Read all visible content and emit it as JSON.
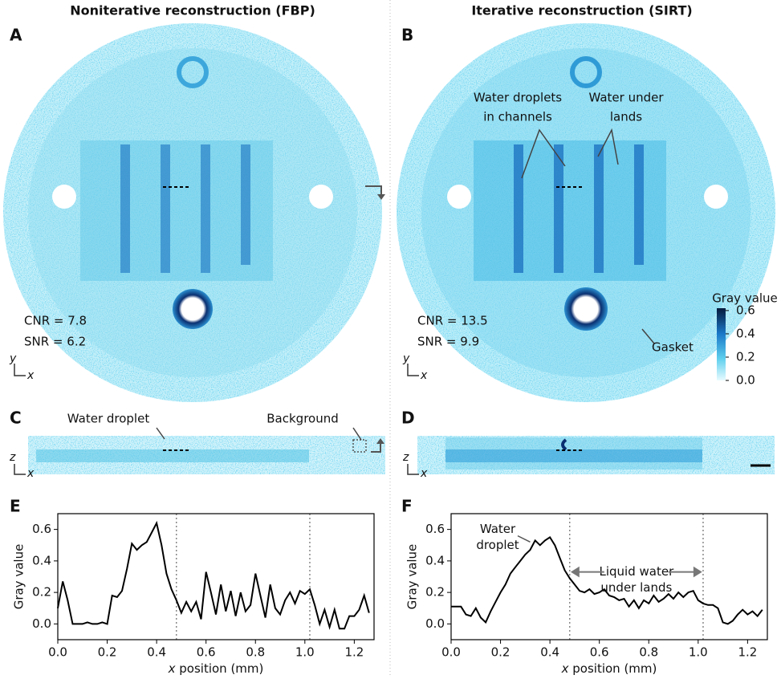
{
  "panels": [
    {
      "letter": "A",
      "title": "Noniterative reconstruction (FBP)",
      "cnr": "CNR = 7.8",
      "snr": "SNR = 6.2"
    },
    {
      "letter": "B",
      "title": "Iterative reconstruction (SIRT)",
      "cnr": "CNR = 13.5",
      "snr": "SNR = 9.9"
    },
    {
      "letter": "C"
    },
    {
      "letter": "D"
    },
    {
      "letter": "E"
    },
    {
      "letter": "F"
    }
  ],
  "axis_letters": {
    "x": "x",
    "y": "y",
    "z": "z"
  },
  "annotations": {
    "droplets_in_channels": [
      "Water droplets",
      "in channels"
    ],
    "under_lands": [
      "Water under",
      "lands"
    ],
    "gasket": "Gasket",
    "water_droplet": "Water droplet",
    "background": "Background"
  },
  "colorbar": {
    "label": "Gray value",
    "lim": [
      0,
      0.62
    ],
    "ticks": [
      0.6,
      0.4,
      0.2,
      {
        "value": 0,
        "label": "0.0"
      }
    ]
  },
  "chart_data": [
    {
      "type": "line",
      "ylabel": "Gray value",
      "xlabel_var": "x",
      "xlabel": "position (mm)",
      "color": "#000000",
      "xlim": [
        0,
        1.28
      ],
      "ylim": [
        -0.1,
        0.7
      ],
      "xticks": [
        {
          "value": 0,
          "label": "0.0"
        },
        0.2,
        0.4,
        0.6,
        0.8,
        {
          "value": 1,
          "label": "1.0"
        },
        1.2
      ],
      "yticks": [
        {
          "value": 0,
          "label": "0.0"
        },
        0.2,
        0.4,
        0.6
      ],
      "vlines": [
        0.48,
        1.02
      ],
      "x": [
        0,
        0.02,
        0.04,
        0.06,
        0.08,
        0.1,
        0.12,
        0.14,
        0.16,
        0.18,
        0.2,
        0.22,
        0.24,
        0.26,
        0.28,
        0.3,
        0.32,
        0.34,
        0.36,
        0.38,
        0.4,
        0.42,
        0.44,
        0.46,
        0.48,
        0.5,
        0.52,
        0.54,
        0.56,
        0.58,
        0.6,
        0.62,
        0.64,
        0.66,
        0.68,
        0.7,
        0.72,
        0.74,
        0.76,
        0.78,
        0.8,
        0.82,
        0.84,
        0.86,
        0.88,
        0.9,
        0.92,
        0.94,
        0.96,
        0.98,
        1,
        1.02,
        1.04,
        1.06,
        1.08,
        1.1,
        1.12,
        1.14,
        1.16,
        1.18,
        1.2,
        1.22,
        1.24,
        1.26
      ],
      "values": [
        0.1,
        0.27,
        0.15,
        0,
        0,
        0,
        0.01,
        0,
        0,
        0.01,
        0,
        0.18,
        0.17,
        0.21,
        0.35,
        0.51,
        0.47,
        0.5,
        0.52,
        0.58,
        0.64,
        0.5,
        0.32,
        0.22,
        0.15,
        0.07,
        0.14,
        0.08,
        0.14,
        0.03,
        0.33,
        0.2,
        0.06,
        0.25,
        0.08,
        0.21,
        0.05,
        0.2,
        0.08,
        0.12,
        0.32,
        0.18,
        0.04,
        0.25,
        0.1,
        0.06,
        0.15,
        0.2,
        0.13,
        0.21,
        0.19,
        0.22,
        0.12,
        0,
        0.09,
        -0.02,
        0.09,
        -0.03,
        -0.03,
        0.05,
        0.05,
        0.09,
        0.18,
        0.07
      ]
    },
    {
      "type": "line",
      "ylabel": "Gray value",
      "xlabel_var": "x",
      "xlabel": "position (mm)",
      "color": "#000000",
      "xlim": [
        0,
        1.28
      ],
      "ylim": [
        -0.1,
        0.7
      ],
      "xticks": [
        {
          "value": 0,
          "label": "0.0"
        },
        0.2,
        0.4,
        0.6,
        0.8,
        {
          "value": 1,
          "label": "1.0"
        },
        1.2
      ],
      "yticks": [
        {
          "value": 0,
          "label": "0.0"
        },
        0.2,
        0.4,
        0.6
      ],
      "vlines": [
        0.48,
        1.02
      ],
      "annotations": [
        [
          "Water",
          "droplet"
        ],
        [
          "Liquid water",
          "under lands"
        ]
      ],
      "x": [
        0,
        0.02,
        0.04,
        0.06,
        0.08,
        0.1,
        0.12,
        0.14,
        0.16,
        0.18,
        0.2,
        0.22,
        0.24,
        0.26,
        0.28,
        0.3,
        0.32,
        0.34,
        0.36,
        0.38,
        0.4,
        0.42,
        0.44,
        0.46,
        0.48,
        0.5,
        0.52,
        0.54,
        0.56,
        0.58,
        0.6,
        0.62,
        0.64,
        0.66,
        0.68,
        0.7,
        0.72,
        0.74,
        0.76,
        0.78,
        0.8,
        0.82,
        0.84,
        0.86,
        0.88,
        0.9,
        0.92,
        0.94,
        0.96,
        0.98,
        1,
        1.02,
        1.04,
        1.06,
        1.08,
        1.1,
        1.12,
        1.14,
        1.16,
        1.18,
        1.2,
        1.22,
        1.24,
        1.26
      ],
      "values": [
        0.11,
        0.11,
        0.11,
        0.06,
        0.05,
        0.1,
        0.04,
        0.01,
        0.08,
        0.14,
        0.2,
        0.25,
        0.32,
        0.36,
        0.4,
        0.44,
        0.47,
        0.53,
        0.5,
        0.53,
        0.55,
        0.5,
        0.42,
        0.34,
        0.29,
        0.25,
        0.21,
        0.2,
        0.22,
        0.19,
        0.2,
        0.22,
        0.18,
        0.17,
        0.15,
        0.16,
        0.11,
        0.15,
        0.1,
        0.15,
        0.13,
        0.18,
        0.14,
        0.16,
        0.19,
        0.16,
        0.2,
        0.17,
        0.2,
        0.21,
        0.15,
        0.13,
        0.12,
        0.12,
        0.1,
        0.01,
        0,
        0.02,
        0.06,
        0.09,
        0.06,
        0.08,
        0.05,
        0.09
      ]
    }
  ]
}
